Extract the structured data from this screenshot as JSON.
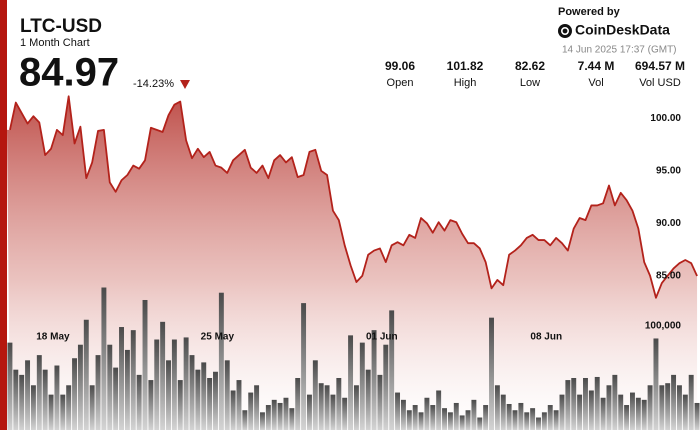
{
  "header": {
    "title": "LTC-USD",
    "subtitle": "1 Month Chart",
    "price": "84.97",
    "change": "-14.23%",
    "stats": [
      {
        "value": "99.06",
        "label": "Open"
      },
      {
        "value": "101.82",
        "label": "High"
      },
      {
        "value": "82.62",
        "label": "Low"
      },
      {
        "value": "7.44 M",
        "label": "Vol"
      },
      {
        "value": "694.57 M",
        "label": "Vol USD"
      }
    ],
    "powered_by": "Powered by",
    "brand": "CoinDeskData",
    "timestamp": "14 Jun 2025 17:37 (GMT)"
  },
  "chart_data": {
    "type": "line",
    "categories": [
      null,
      null,
      null,
      null,
      null,
      null,
      null,
      null,
      "18 May",
      null,
      null,
      null,
      null,
      null,
      null,
      null,
      null,
      null,
      null,
      null,
      null,
      null,
      null,
      null,
      null,
      null,
      null,
      null,
      null,
      null,
      null,
      null,
      null,
      null,
      null,
      null,
      "25 May",
      null,
      null,
      null,
      null,
      null,
      null,
      null,
      null,
      null,
      null,
      null,
      null,
      null,
      null,
      null,
      null,
      null,
      null,
      null,
      null,
      null,
      null,
      null,
      null,
      null,
      null,
      null,
      "01 Jun",
      null,
      null,
      null,
      null,
      null,
      null,
      null,
      null,
      null,
      null,
      null,
      null,
      null,
      null,
      null,
      null,
      null,
      null,
      null,
      null,
      null,
      null,
      null,
      null,
      null,
      null,
      null,
      "08 Jun",
      null,
      null,
      null,
      null,
      null,
      null,
      null,
      null,
      null,
      null,
      null,
      null,
      null,
      null,
      null,
      null,
      null,
      null,
      null,
      null,
      null,
      null,
      null,
      null,
      null
    ],
    "series": [
      {
        "color": "#b3221b",
        "values": [
          98.9,
          101.5,
          100.5,
          99.5,
          100.2,
          99.6,
          96.5,
          97.1,
          98.9,
          98.4,
          102.1,
          97.6,
          99.2,
          94.3,
          95.8,
          98.8,
          98.9,
          93.9,
          93.0,
          94.1,
          94.6,
          95.5,
          95.2,
          96.0,
          99.1,
          98.9,
          98.7,
          100.3,
          101.3,
          101.6,
          97.9,
          96.2,
          97.1,
          96.3,
          96.8,
          95.5,
          95.3,
          94.8,
          96.0,
          96.5,
          97.0,
          95.3,
          94.8,
          95.5,
          94.3,
          96.0,
          96.5,
          95.8,
          96.3,
          94.4,
          94.6,
          96.8,
          97.0,
          95.0,
          94.6,
          91.2,
          90.3,
          87.9,
          86.0,
          84.4,
          85.0,
          87.0,
          87.4,
          87.6,
          86.3,
          87.9,
          88.2,
          87.9,
          88.9,
          88.6,
          90.5,
          90.0,
          89.1,
          90.1,
          89.3,
          90.3,
          90.1,
          89.0,
          88.1,
          88.1,
          87.6,
          86.3,
          83.8,
          84.6,
          84.1,
          87.0,
          87.4,
          87.9,
          88.6,
          88.9,
          88.4,
          88.4,
          87.9,
          88.6,
          88.1,
          87.4,
          89.5,
          90.5,
          90.3,
          91.7,
          91.7,
          91.9,
          93.6,
          91.7,
          92.9,
          92.2,
          91.2,
          89.5,
          86.3,
          85.0,
          82.9,
          84.3,
          85.0,
          85.7,
          86.2,
          86.5,
          86.2,
          84.97
        ]
      },
      {
        "type": "bar",
        "axis": "y2",
        "color": "#555555",
        "values": [
          84000,
          58000,
          53000,
          67000,
          43000,
          72000,
          58000,
          34000,
          62000,
          34000,
          43000,
          69000,
          82000,
          106000,
          43000,
          72000,
          137000,
          82000,
          60000,
          99000,
          77000,
          96000,
          53000,
          125000,
          48000,
          87000,
          104000,
          67000,
          87000,
          48000,
          89000,
          72000,
          58000,
          65000,
          50000,
          56000,
          132000,
          67000,
          38000,
          48000,
          19000,
          36000,
          43000,
          17000,
          24000,
          29000,
          26000,
          31000,
          21000,
          50000,
          122000,
          34000,
          67000,
          45000,
          43000,
          34000,
          50000,
          31000,
          91000,
          43000,
          84000,
          58000,
          96000,
          53000,
          82000,
          115000,
          36000,
          29000,
          19000,
          24000,
          17000,
          31000,
          24000,
          38000,
          21000,
          17000,
          26000,
          14000,
          19000,
          29000,
          12000,
          24000,
          108000,
          43000,
          34000,
          25000,
          19000,
          26000,
          17000,
          21000,
          12000,
          17000,
          24000,
          19000,
          34000,
          48000,
          50000,
          34000,
          50000,
          38000,
          51000,
          31000,
          43000,
          53000,
          34000,
          24000,
          36000,
          31000,
          29000,
          43000,
          88000,
          43000,
          45000,
          53000,
          43000,
          34000,
          53000,
          26000
        ]
      }
    ],
    "ylim": [
      70.3,
      102.7
    ],
    "yticks": [
      {
        "value": 85,
        "label": "85.00"
      },
      {
        "value": 90,
        "label": "90.00"
      },
      {
        "value": 95,
        "label": "95.00"
      },
      {
        "value": 100,
        "label": "100.00"
      }
    ],
    "y2lim": [
      0,
      326900
    ],
    "y2ticks": [
      {
        "value": 100000,
        "label": "100,000"
      }
    ],
    "grid": false
  }
}
